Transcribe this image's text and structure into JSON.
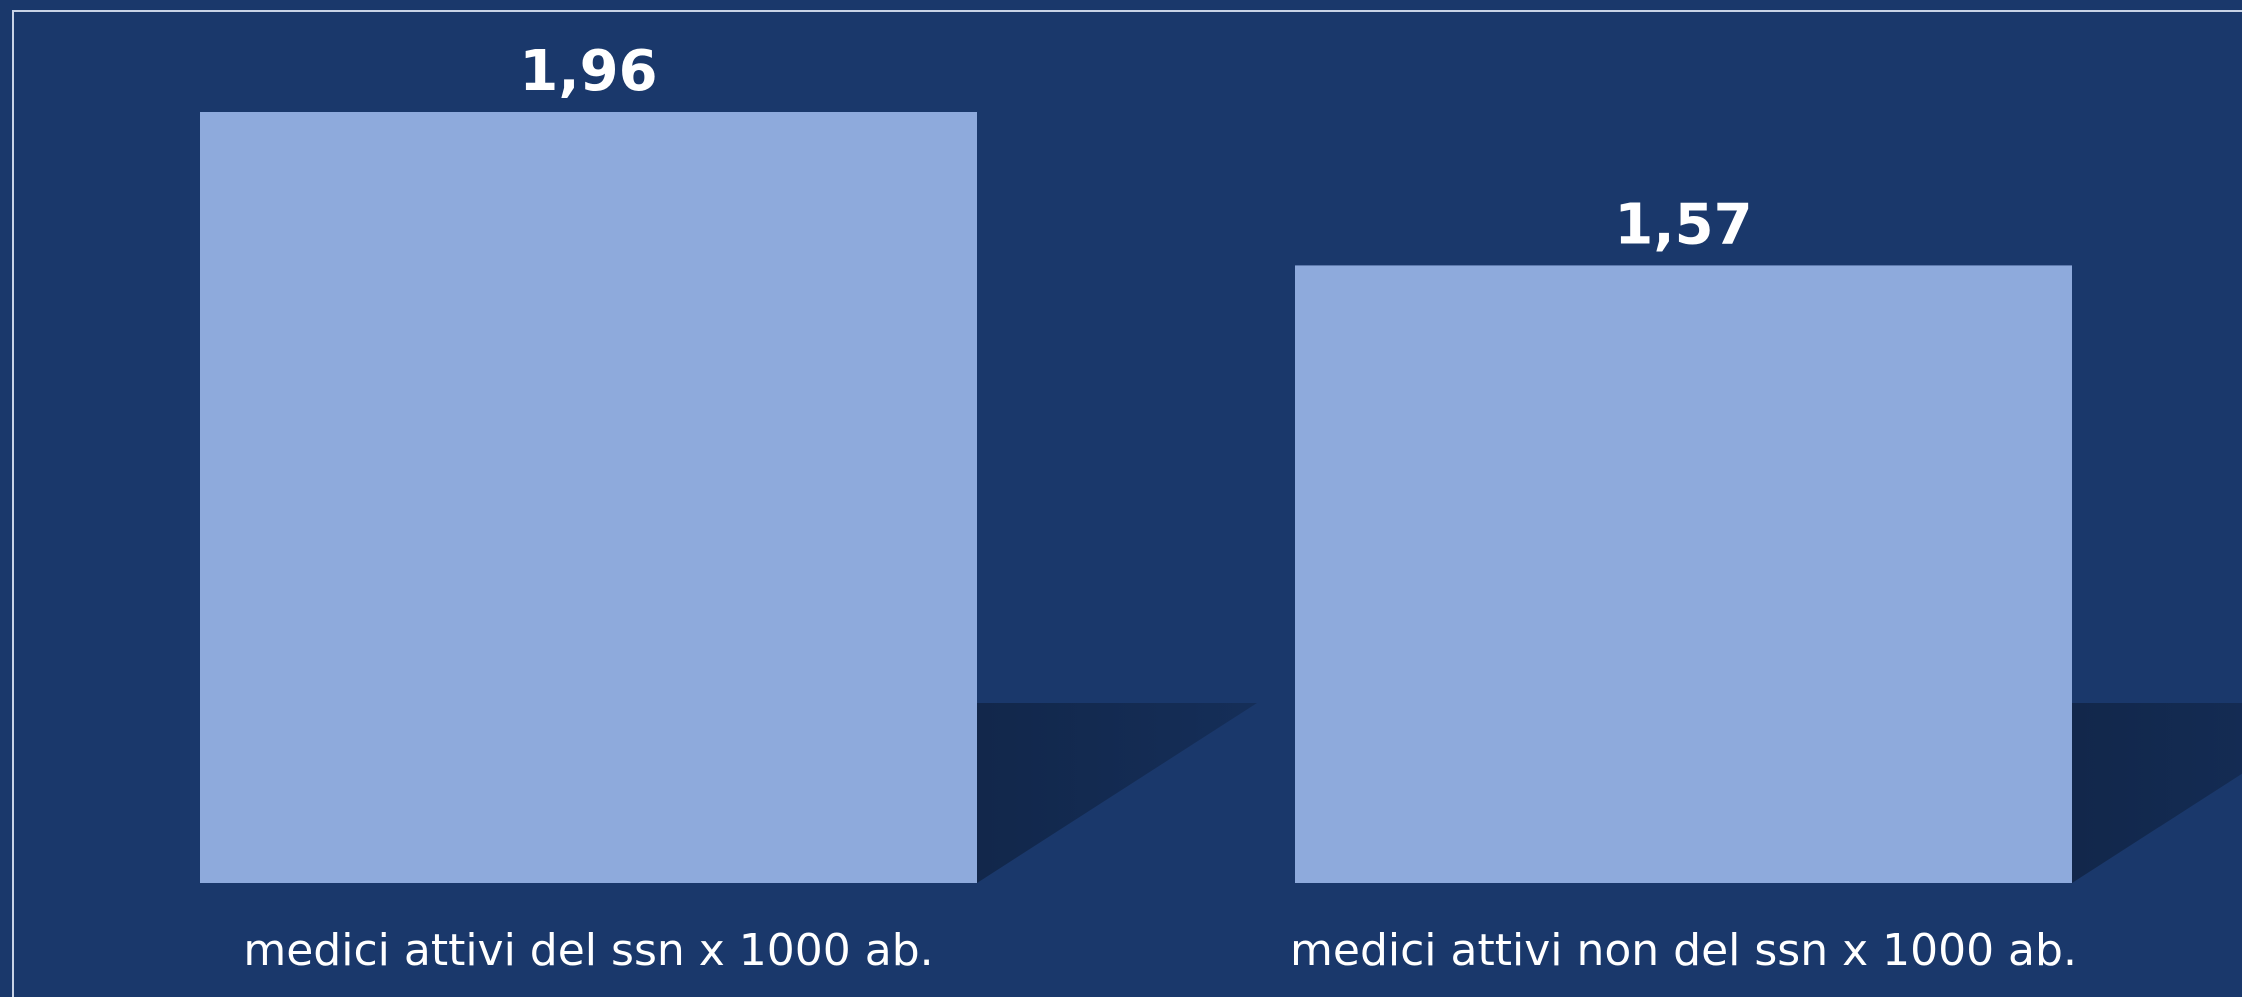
{
  "chart_data": {
    "type": "bar",
    "categories": [
      "medici attivi del ssn x 1000 ab.",
      "medici attivi non del ssn x 1000 ab."
    ],
    "values": [
      1.96,
      1.57
    ],
    "value_labels": [
      "1,96",
      "1,57"
    ],
    "title": "",
    "xlabel": "",
    "ylabel": "",
    "ylim": [
      0,
      1.96
    ],
    "grid": false,
    "legend": "none",
    "colors": {
      "background": "#1a386b",
      "bar": "#8eaadc",
      "shadow": "#132a52",
      "text": "#ffffff",
      "frame": "#c8d3e6"
    }
  }
}
